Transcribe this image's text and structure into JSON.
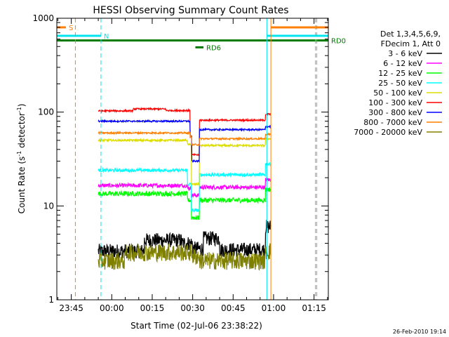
{
  "chart_data": {
    "type": "line",
    "title": "HESSI Observing Summary Count Rates",
    "xlabel": "Start Time (02-Jul-06 23:38:22)",
    "ylabel_main": "Count Rate (s",
    "ylabel_sup1": "-1",
    "ylabel_mid": " detector",
    "ylabel_sup2": "-1",
    "ylabel_end": ")",
    "yscale": "log",
    "ylim": [
      1,
      1000
    ],
    "xlim_minutes": [
      -20.37,
      80.3
    ],
    "x_tick_labels": [
      "23:45",
      "00:00",
      "00:15",
      "00:30",
      "00:45",
      "01:00",
      "01:15"
    ],
    "x_tick_minutes": [
      -15,
      0,
      15,
      30,
      45,
      60,
      75
    ],
    "y_tick_labels": [
      "1",
      "10",
      "100",
      "1000"
    ],
    "y_tick_values": [
      1,
      10,
      100,
      1000
    ],
    "legend_header": [
      "Det 1,3,4,5,6,9,",
      "FDecim 1, Att 0"
    ],
    "legend_placement": "right",
    "timestamp": "26-Feb-2010 19:14",
    "flags": [
      {
        "label": "S",
        "color": "#ff7f00",
        "value": 800,
        "x_start": -20.37,
        "x_end": -17
      },
      {
        "label": "N",
        "color": "#00e5ee",
        "value": 650,
        "x_start": -20.37,
        "x_end": -4
      },
      {
        "label": "RD0",
        "color": "#007a00",
        "value": 580,
        "x_start": -20.37,
        "x_end": 80.3
      },
      {
        "label": "RD6",
        "color": "#007a00",
        "value": 490,
        "x_start": 31,
        "x_end": 34
      }
    ],
    "flag_segments_right": [
      {
        "color": "#ff7f00",
        "value": 800,
        "x_start": 59,
        "x_end": 80.3
      },
      {
        "color": "#00e5ee",
        "value": 650,
        "x_start": 57.5,
        "x_end": 80.3
      }
    ],
    "vertical_markers": [
      {
        "color": "#ff7f00",
        "style": "dashed",
        "x": -13.5
      },
      {
        "color": "#00e5ee",
        "style": "dashed",
        "x": -4
      },
      {
        "color": "#00e5ee",
        "style": "solid",
        "x": 57.5
      },
      {
        "color": "#ff7f00",
        "style": "solid",
        "x": 59
      },
      {
        "color": "#00e5ee",
        "style": "dashed",
        "x": 75.5
      },
      {
        "color": "#ff7f00",
        "style": "dashed",
        "x": 76
      }
    ],
    "data_time_range": [
      -5,
      59
    ],
    "series": [
      {
        "name": "3 - 6 keV",
        "color": "#000000",
        "levels": [
          {
            "x": [
              -5,
              12
            ],
            "v": 3.3
          },
          {
            "x": [
              12,
              26
            ],
            "v": 4.3
          },
          {
            "x": [
              26,
              30
            ],
            "v": 4.0
          },
          {
            "x": [
              30,
              34
            ],
            "v": 3.5
          },
          {
            "x": [
              34,
              40
            ],
            "v": 4.5
          },
          {
            "x": [
              40,
              57
            ],
            "v": 3.4
          },
          {
            "x": [
              57,
              59
            ],
            "v": 6.0
          }
        ],
        "noise": 0.18
      },
      {
        "name": "6 - 12 keV",
        "color": "#ff00ff",
        "levels": [
          {
            "x": [
              -5,
              28
            ],
            "v": 16.5
          },
          {
            "x": [
              28,
              29.5
            ],
            "v": 15.5
          },
          {
            "x": [
              29.5,
              32.5
            ],
            "v": 13.0
          },
          {
            "x": [
              32.5,
              57
            ],
            "v": 15.8
          },
          {
            "x": [
              57,
              59
            ],
            "v": 19.0
          }
        ],
        "noise": 0.05
      },
      {
        "name": "12 - 25 keV",
        "color": "#00ff00",
        "levels": [
          {
            "x": [
              -5,
              28
            ],
            "v": 13.5
          },
          {
            "x": [
              28,
              29.5
            ],
            "v": 11.5
          },
          {
            "x": [
              29.5,
              32.5
            ],
            "v": 7.5
          },
          {
            "x": [
              32.5,
              57
            ],
            "v": 11.5
          },
          {
            "x": [
              57,
              59
            ],
            "v": 15.0
          }
        ],
        "noise": 0.06
      },
      {
        "name": "25 - 50 keV",
        "color": "#00ffff",
        "levels": [
          {
            "x": [
              -5,
              28
            ],
            "v": 24.0
          },
          {
            "x": [
              28,
              29.5
            ],
            "v": 17.0
          },
          {
            "x": [
              29.5,
              32.5
            ],
            "v": 9.0
          },
          {
            "x": [
              32.5,
              57
            ],
            "v": 21.5
          },
          {
            "x": [
              57,
              59
            ],
            "v": 28.0
          }
        ],
        "noise": 0.04
      },
      {
        "name": "50 - 100 keV",
        "color": "#dddd00",
        "levels": [
          {
            "x": [
              -5,
              28
            ],
            "v": 50.0
          },
          {
            "x": [
              28,
              29.5
            ],
            "v": 45.0
          },
          {
            "x": [
              29.5,
              32.5
            ],
            "v": 17.0
          },
          {
            "x": [
              32.5,
              57
            ],
            "v": 44.0
          },
          {
            "x": [
              57,
              59
            ],
            "v": 52.0
          }
        ],
        "noise": 0.025
      },
      {
        "name": "100 - 300 keV",
        "color": "#ff0000",
        "levels": [
          {
            "x": [
              -5,
              8
            ],
            "v": 103.0
          },
          {
            "x": [
              8,
              20
            ],
            "v": 108.0
          },
          {
            "x": [
              20,
              29
            ],
            "v": 104.0
          },
          {
            "x": [
              29,
              29.6
            ],
            "v": 55.0
          },
          {
            "x": [
              29.6,
              32.5
            ],
            "v": 35.0
          },
          {
            "x": [
              32.5,
              57
            ],
            "v": 82.0
          },
          {
            "x": [
              57,
              59
            ],
            "v": 95.0
          }
        ],
        "noise": 0.02
      },
      {
        "name": "300 - 800 keV",
        "color": "#0000ff",
        "levels": [
          {
            "x": [
              -5,
              29
            ],
            "v": 80.0
          },
          {
            "x": [
              29,
              29.6
            ],
            "v": 55.0
          },
          {
            "x": [
              29.6,
              32.5
            ],
            "v": 30.0
          },
          {
            "x": [
              32.5,
              57
            ],
            "v": 65.0
          },
          {
            "x": [
              57,
              59
            ],
            "v": 70.0
          }
        ],
        "noise": 0.02
      },
      {
        "name": "800 - 7000 keV",
        "color": "#ff7f00",
        "levels": [
          {
            "x": [
              -5,
              29
            ],
            "v": 60.0
          },
          {
            "x": [
              29,
              29.6
            ],
            "v": 55.0
          },
          {
            "x": [
              29.6,
              32.5
            ],
            "v": 45.0
          },
          {
            "x": [
              32.5,
              57
            ],
            "v": 52.0
          },
          {
            "x": [
              57,
              59
            ],
            "v": 58.0
          }
        ],
        "noise": 0.02
      },
      {
        "name": "7000 - 20000 keV",
        "color": "#808000",
        "levels": [
          {
            "x": [
              -5,
              5
            ],
            "v": 2.6
          },
          {
            "x": [
              5,
              30
            ],
            "v": 3.2
          },
          {
            "x": [
              30,
              32.5
            ],
            "v": 2.9
          },
          {
            "x": [
              32.5,
              57
            ],
            "v": 2.6
          },
          {
            "x": [
              57,
              59
            ],
            "v": 3.3
          }
        ],
        "noise": 0.22
      }
    ]
  }
}
